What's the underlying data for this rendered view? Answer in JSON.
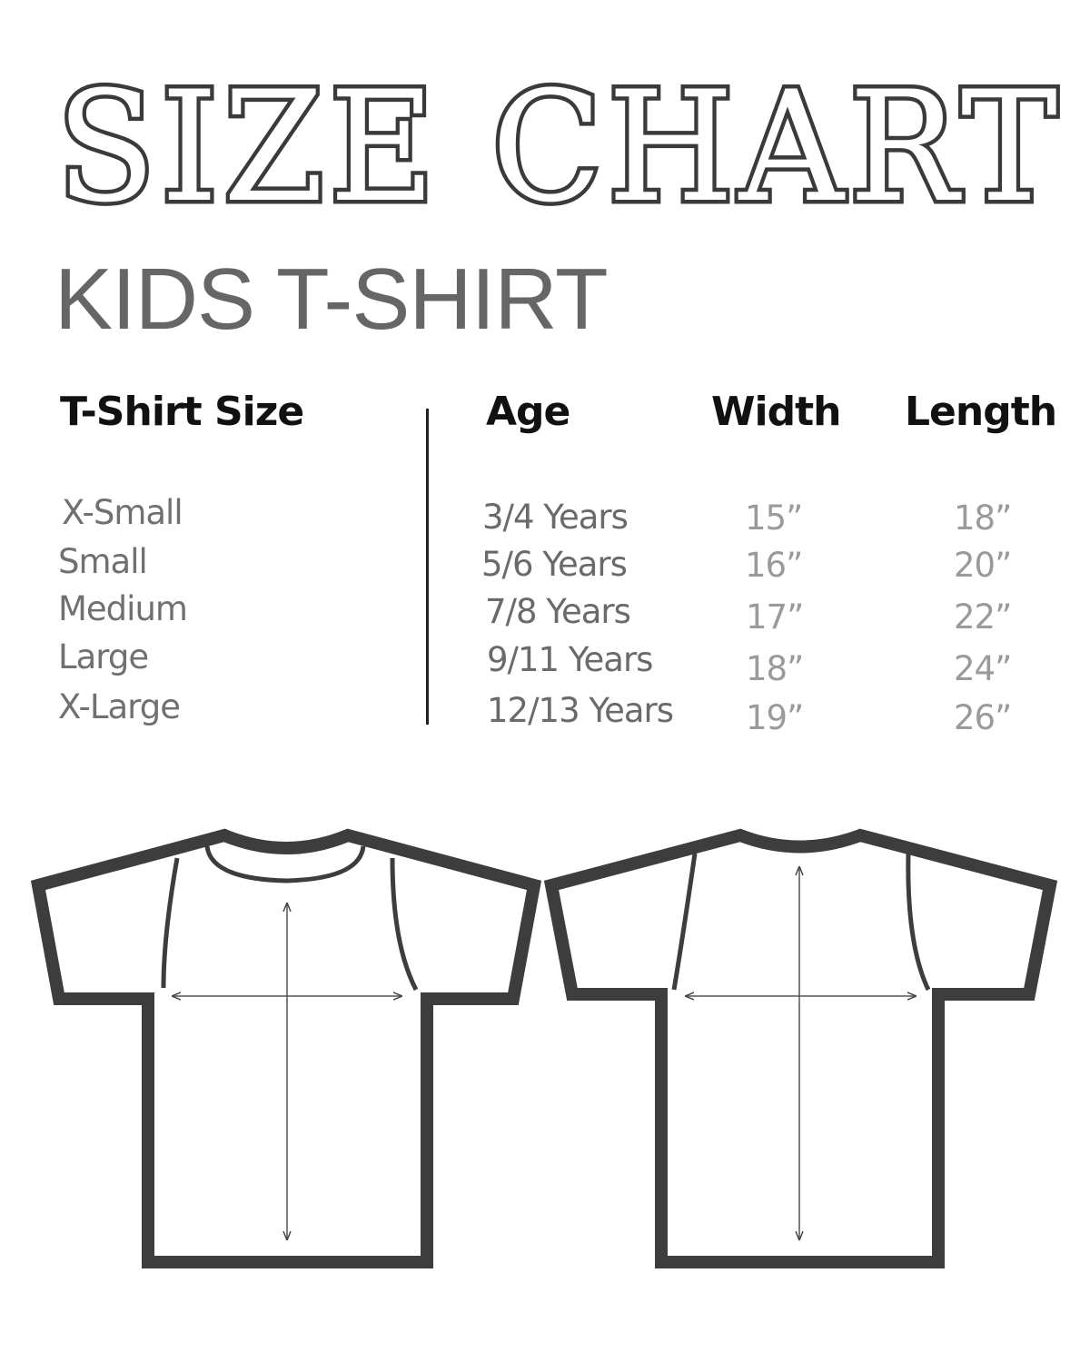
{
  "title": "SIZE CHART",
  "subtitle": "KIDS T-SHIRT",
  "table": {
    "headers": {
      "size": "T-Shirt Size",
      "age": "Age",
      "width": "Width",
      "length": "Length"
    },
    "rows": [
      {
        "size": "X-Small",
        "age": "3/4 Years",
        "width": "15”",
        "length": "18”"
      },
      {
        "size": "Small",
        "age": "5/6 Years",
        "width": "16”",
        "length": "20”"
      },
      {
        "size": "Medium",
        "age": "7/8 Years",
        "width": "17”",
        "length": "22”"
      },
      {
        "size": "Large",
        "age": "9/11 Years",
        "width": "18”",
        "length": "24”"
      },
      {
        "size": "X-Large",
        "age": "12/13 Years",
        "width": "19”",
        "length": "26”"
      }
    ]
  },
  "colors": {
    "outline": "#3d3d3d",
    "text_dark": "#111111",
    "text_gray": "#707070"
  }
}
